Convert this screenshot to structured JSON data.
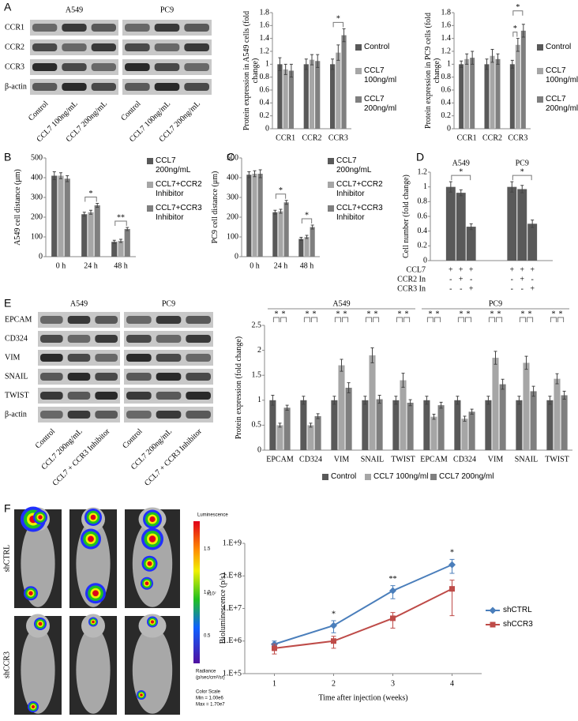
{
  "panel_labels": [
    "A",
    "B",
    "C",
    "D",
    "E",
    "F"
  ],
  "blots": [
    {
      "groups": [
        "A549",
        "PC9"
      ],
      "rows": [
        "CCR1",
        "CCR2",
        "CCR3",
        "β-actin"
      ],
      "lanes": [
        "Control",
        "CCL7 100ng/mL",
        "CCL7 200ng/mL",
        "Control",
        "CCL7 100ng/mL",
        "CCL7 200ng/mL"
      ]
    },
    {
      "groups": [
        "A549",
        "PC9"
      ],
      "rows": [
        "EPCAM",
        "CD324",
        "VIM",
        "SNAIL",
        "TWIST",
        "β-actin"
      ],
      "lanes": [
        "Control",
        "CCL7 200ng/mL",
        "CCL7 + CCR3 Inhibitor",
        "Control",
        "CCL7 200ng/mL",
        "CCL7 + CCR3 Inhibitor"
      ]
    }
  ],
  "imaging": {
    "rows": [
      "shCTRL",
      "shCCR3"
    ],
    "colorbar": {
      "title": "Luminescence",
      "ticks": [
        "1.5",
        "1.0",
        "0.5"
      ],
      "unit": "x10⁷",
      "footer": [
        "Radiance",
        "(p/sec/cm²/sr)",
        "Color Scale",
        "Min = 1.00e6",
        "Max = 1.70e7"
      ]
    }
  },
  "chart_data": [
    {
      "type": "bar",
      "ylabel": "Protein expression in A549 cells (fold change)",
      "categories": [
        "CCR1",
        "CCR2",
        "CCR3"
      ],
      "ylim": [
        0,
        1.8
      ],
      "yticks": [
        0,
        0.2,
        0.4,
        0.6,
        0.8,
        1,
        1.2,
        1.4,
        1.6,
        1.8
      ],
      "legend": "right",
      "series": [
        {
          "name": "Control",
          "color": "#595959",
          "values": [
            1,
            1,
            1
          ],
          "errors": [
            0.1,
            0.08,
            0.08
          ]
        },
        {
          "name": "CCL7 100ng/ml",
          "color": "#a6a6a6",
          "values": [
            0.92,
            1.07,
            1.18
          ],
          "errors": [
            0.08,
            0.08,
            0.12
          ]
        },
        {
          "name": "CCL7 200ng/ml",
          "color": "#7f7f7f",
          "values": [
            0.9,
            1.05,
            1.45
          ],
          "errors": [
            0.1,
            0.1,
            0.1
          ]
        }
      ],
      "annotations": [
        {
          "text": "*",
          "at": 2,
          "from": 0,
          "to": 2
        }
      ]
    },
    {
      "type": "bar",
      "ylabel": "Protein expression in PC9 cells (fold change)",
      "categories": [
        "CCR1",
        "CCR2",
        "CCR3"
      ],
      "ylim": [
        0,
        1.8
      ],
      "yticks": [
        0,
        0.2,
        0.4,
        0.6,
        0.8,
        1,
        1.2,
        1.4,
        1.6,
        1.8
      ],
      "legend": "right",
      "series": [
        {
          "name": "Control",
          "color": "#595959",
          "values": [
            1,
            1,
            1
          ],
          "errors": [
            0.05,
            0.08,
            0.06
          ]
        },
        {
          "name": "CCL7 100ng/ml",
          "color": "#a6a6a6",
          "values": [
            1.08,
            1.13,
            1.3
          ],
          "errors": [
            0.08,
            0.1,
            0.1
          ]
        },
        {
          "name": "CCL7 200ng/ml",
          "color": "#7f7f7f",
          "values": [
            1.1,
            1.08,
            1.52
          ],
          "errors": [
            0.1,
            0.08,
            0.1
          ]
        }
      ],
      "annotations": [
        {
          "text": "*",
          "at": 2,
          "from": 0,
          "to": 1
        },
        {
          "text": "*",
          "at": 2,
          "from": 0,
          "to": 2
        }
      ]
    },
    {
      "type": "bar",
      "ylabel": "A549 cell distance (μm)",
      "categories": [
        "0 h",
        "24 h",
        "48 h"
      ],
      "ylim": [
        0,
        500
      ],
      "yticks": [
        0,
        100,
        200,
        300,
        400,
        500
      ],
      "legend": "right",
      "series": [
        {
          "name": "CCL7 200ng/mL",
          "color": "#595959",
          "values": [
            410,
            215,
            75
          ],
          "errors": [
            20,
            10,
            8
          ]
        },
        {
          "name": "CCL7+CCR2 Inhibitor",
          "color": "#a6a6a6",
          "values": [
            410,
            225,
            80
          ],
          "errors": [
            15,
            10,
            8
          ]
        },
        {
          "name": "CCL7+CCR3 Inhibitor",
          "color": "#7f7f7f",
          "values": [
            395,
            260,
            140
          ],
          "errors": [
            15,
            10,
            8
          ]
        }
      ],
      "annotations": [
        {
          "text": "*",
          "at": 1,
          "from": 0,
          "to": 2
        },
        {
          "text": "**",
          "at": 2,
          "from": 0,
          "to": 2
        }
      ]
    },
    {
      "type": "bar",
      "ylabel": "PC9 cell distance (μm)",
      "categories": [
        "0 h",
        "24 h",
        "48 h"
      ],
      "ylim": [
        0,
        500
      ],
      "yticks": [
        0,
        100,
        200,
        300,
        400,
        500
      ],
      "legend": "right",
      "series": [
        {
          "name": "CCL7 200ng/mL",
          "color": "#595959",
          "values": [
            415,
            225,
            90
          ],
          "errors": [
            15,
            10,
            8
          ]
        },
        {
          "name": "CCL7+CCR2 Inhibitor",
          "color": "#a6a6a6",
          "values": [
            420,
            230,
            100
          ],
          "errors": [
            15,
            10,
            8
          ]
        },
        {
          "name": "CCL7+CCR3 Inhibitor",
          "color": "#7f7f7f",
          "values": [
            420,
            275,
            150
          ],
          "errors": [
            20,
            10,
            10
          ]
        }
      ],
      "annotations": [
        {
          "text": "*",
          "at": 1,
          "from": 0,
          "to": 2
        },
        {
          "text": "*",
          "at": 2,
          "from": 0,
          "to": 2
        }
      ]
    },
    {
      "type": "bar",
      "ylabel": "Cell number (fold change)",
      "categories": [
        "A549",
        "PC9"
      ],
      "ylim": [
        0,
        1.2
      ],
      "yticks": [
        0,
        0.2,
        0.4,
        0.6,
        0.8,
        1,
        1.2
      ],
      "series": [
        {
          "color": "#595959",
          "values": [
            1,
            1
          ],
          "errors": [
            0.07,
            0.07
          ]
        },
        {
          "color": "#595959",
          "values": [
            0.92,
            0.97
          ],
          "errors": [
            0.04,
            0.05
          ]
        },
        {
          "color": "#595959",
          "values": [
            0.46,
            0.5
          ],
          "errors": [
            0.04,
            0.05
          ]
        }
      ],
      "annotations": [
        {
          "text": "*",
          "at": 0,
          "from": 0,
          "to": 2
        },
        {
          "text": "*",
          "at": 1,
          "from": 0,
          "to": 2
        }
      ],
      "conditions": [
        {
          "name": "CCL7",
          "signs": [
            "+",
            "+",
            "+",
            "+",
            "+",
            "+"
          ]
        },
        {
          "name": "CCR2 In",
          "signs": [
            "-",
            "+",
            "-",
            "-",
            "+",
            "-"
          ]
        },
        {
          "name": "CCR3 In",
          "signs": [
            "-",
            "-",
            "+",
            "-",
            "-",
            "+"
          ]
        }
      ]
    },
    {
      "type": "bar",
      "ylabel": "Protein expression (fold change)",
      "categories": [
        "EPCAM",
        "CD324",
        "VIM",
        "SNAIL",
        "TWIST",
        "EPCAM",
        "CD324",
        "VIM",
        "SNAIL",
        "TWIST"
      ],
      "groups": [
        "A549",
        "PC9"
      ],
      "ylim": [
        0,
        2.5
      ],
      "yticks": [
        0,
        0.5,
        1,
        1.5,
        2,
        2.5
      ],
      "legend": "bottom",
      "series": [
        {
          "name": "Control",
          "color": "#595959",
          "values": [
            1,
            1,
            1,
            1,
            1,
            1,
            1,
            1,
            1,
            1
          ],
          "errors": [
            0.1,
            0.08,
            0.08,
            0.08,
            0.08,
            0.08,
            0.08,
            0.08,
            0.08,
            0.08
          ]
        },
        {
          "name": "CCL7 100ng/ml",
          "color": "#a6a6a6",
          "values": [
            0.5,
            0.5,
            1.7,
            1.9,
            1.4,
            0.67,
            0.63,
            1.85,
            1.75,
            1.43
          ],
          "errors": [
            0.04,
            0.04,
            0.12,
            0.15,
            0.14,
            0.05,
            0.05,
            0.13,
            0.13,
            0.1
          ]
        },
        {
          "name": "CCL7 200ng/ml",
          "color": "#7f7f7f",
          "values": [
            0.85,
            0.68,
            1.25,
            1.02,
            0.95,
            0.9,
            0.77,
            1.32,
            1.18,
            1.1
          ],
          "errors": [
            0.05,
            0.05,
            0.1,
            0.08,
            0.06,
            0.06,
            0.05,
            0.1,
            0.1,
            0.08
          ]
        }
      ],
      "annotations": [
        {
          "text": "*",
          "at": 0,
          "from": 0,
          "to": 1
        },
        {
          "text": "*",
          "at": 0,
          "from": 1,
          "to": 2
        },
        {
          "text": "*",
          "at": 1,
          "from": 0,
          "to": 1
        },
        {
          "text": "*",
          "at": 1,
          "from": 1,
          "to": 2
        },
        {
          "text": "*",
          "at": 2,
          "from": 0,
          "to": 1
        },
        {
          "text": "*",
          "at": 2,
          "from": 1,
          "to": 2
        },
        {
          "text": "*",
          "at": 3,
          "from": 0,
          "to": 1
        },
        {
          "text": "*",
          "at": 3,
          "from": 1,
          "to": 2
        },
        {
          "text": "*",
          "at": 4,
          "from": 0,
          "to": 1
        },
        {
          "text": "*",
          "at": 4,
          "from": 1,
          "to": 2
        },
        {
          "text": "*",
          "at": 5,
          "from": 0,
          "to": 1
        },
        {
          "text": "*",
          "at": 5,
          "from": 1,
          "to": 2
        },
        {
          "text": "*",
          "at": 6,
          "from": 0,
          "to": 1
        },
        {
          "text": "*",
          "at": 6,
          "from": 1,
          "to": 2
        },
        {
          "text": "*",
          "at": 7,
          "from": 0,
          "to": 1
        },
        {
          "text": "*",
          "at": 7,
          "from": 1,
          "to": 2
        },
        {
          "text": "*",
          "at": 8,
          "from": 0,
          "to": 1
        },
        {
          "text": "*",
          "at": 8,
          "from": 1,
          "to": 2
        },
        {
          "text": "*",
          "at": 9,
          "from": 0,
          "to": 1
        },
        {
          "text": "*",
          "at": 9,
          "from": 1,
          "to": 2
        }
      ]
    },
    {
      "type": "line",
      "ylabel": "Bioluminescence (p/s)",
      "xlabel": "Time after injection (weeks)",
      "x": [
        1,
        2,
        3,
        4
      ],
      "xlim": [
        0.5,
        4.5
      ],
      "xticks": [
        1,
        2,
        3,
        4
      ],
      "log": true,
      "ylim": [
        100000,
        1000000000
      ],
      "yticks": [
        {
          "value": 100000,
          "label": "1.E+5"
        },
        {
          "value": 1000000,
          "label": "1.E+6"
        },
        {
          "value": 10000000,
          "label": "1.E+7"
        },
        {
          "value": 100000000,
          "label": "1.E+8"
        },
        {
          "value": 1000000000,
          "label": "1.E+9"
        }
      ],
      "legend": "right",
      "series": [
        {
          "name": "shCTRL",
          "color": "#4a7ebb",
          "marker": "diamond",
          "values": [
            800000,
            3000000,
            35000000,
            220000000
          ],
          "errors": [
            200000,
            1200000,
            15000000,
            100000000
          ]
        },
        {
          "name": "shCCR3",
          "color": "#be4b48",
          "marker": "square",
          "values": [
            600000,
            1000000,
            5000000,
            40000000
          ],
          "errors": [
            200000,
            400000,
            2500000,
            34000000
          ]
        }
      ],
      "annotations": [
        {
          "text": "*",
          "at": 1
        },
        {
          "text": "**",
          "at": 2
        },
        {
          "text": "*",
          "at": 3
        }
      ]
    }
  ]
}
